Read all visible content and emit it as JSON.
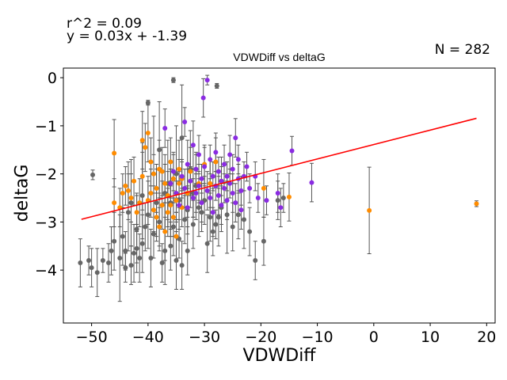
{
  "stats": {
    "r2_text": "r^2 = 0.09",
    "equation_text": "y = 0.03x + -1.39",
    "n_text": "N = 282"
  },
  "chart_data": {
    "type": "scatter",
    "title": "VDWDiff vs deltaG",
    "xlabel": "VDWDiff",
    "ylabel": "deltaG",
    "xlim": [
      -55,
      21.5
    ],
    "ylim": [
      -5.1,
      0.2
    ],
    "xticks": [
      -50,
      -40,
      -30,
      -20,
      -10,
      0,
      10,
      20
    ],
    "xtick_labels": [
      "−50",
      "−40",
      "−30",
      "−20",
      "−10",
      "0",
      "10",
      "20"
    ],
    "yticks": [
      0,
      -1,
      -2,
      -3,
      -4
    ],
    "ytick_labels": [
      "0",
      "−1",
      "−2",
      "−3",
      "−4"
    ],
    "grid": false,
    "legend": false,
    "colors": {
      "gray": "#666666",
      "orange": "#ff8c00",
      "purple": "#8a2be2",
      "fit": "#ff0000",
      "errorbar": "#555555"
    },
    "fit_line": {
      "slope": 0.03,
      "intercept": -1.39,
      "x": [
        -51.8,
        18.2
      ]
    },
    "series": [
      {
        "color": "gray",
        "points": [
          [
            -52,
            -3.85,
            0.5
          ],
          [
            -50.5,
            -3.8,
            0.3
          ],
          [
            -50,
            -3.95,
            0.4
          ],
          [
            -49.8,
            -2.02,
            0.1
          ],
          [
            -49,
            -4.05,
            0.5
          ],
          [
            -48,
            -3.8,
            0.25
          ],
          [
            -47,
            -3.85,
            0.4
          ],
          [
            -46.5,
            -3.6,
            0.5
          ],
          [
            -46,
            -3.4,
            0.6
          ],
          [
            -45,
            -3.75,
            0.9
          ],
          [
            -44.5,
            -3.3,
            0.6
          ],
          [
            -44,
            -3.6,
            0.4
          ],
          [
            -44,
            -3.95,
            0.3
          ],
          [
            -43.5,
            -2.8,
            0.8
          ],
          [
            -43,
            -2.6,
            0.9
          ],
          [
            -43,
            -3.9,
            0.4
          ],
          [
            -42.5,
            -3.65,
            0.6
          ],
          [
            -42,
            -3.55,
            0.5
          ],
          [
            -42,
            -3.15,
            0.7
          ],
          [
            -41.5,
            -3.75,
            0.5
          ],
          [
            -41,
            -3.45,
            0.6
          ],
          [
            -41,
            -2.45,
            0.9
          ],
          [
            -40.5,
            -3.1,
            0.5
          ],
          [
            -40,
            -2.85,
            0.7
          ],
          [
            -40,
            -0.52,
            0.05
          ],
          [
            -39.5,
            -3.75,
            0.6
          ],
          [
            -39,
            -2.0,
            1.2
          ],
          [
            -39,
            -3.25,
            0.5
          ],
          [
            -38.5,
            -2.6,
            0.7
          ],
          [
            -38,
            -1.5,
            1.0
          ],
          [
            -38,
            -3.0,
            0.6
          ],
          [
            -37.5,
            -3.85,
            0.4
          ],
          [
            -37,
            -3.6,
            0.7
          ],
          [
            -37,
            -2.4,
            0.8
          ],
          [
            -36.5,
            -2.2,
            0.9
          ],
          [
            -36,
            -2.6,
            0.7
          ],
          [
            -36,
            -3.5,
            0.5
          ],
          [
            -35.5,
            -0.05,
            0.05
          ],
          [
            -35.5,
            -3.1,
            0.6
          ],
          [
            -35,
            -2.0,
            1.0
          ],
          [
            -35,
            -3.8,
            0.6
          ],
          [
            -34.5,
            -2.55,
            0.6
          ],
          [
            -34.5,
            -3.35,
            0.4
          ],
          [
            -34,
            -1.25,
            1.1
          ],
          [
            -34,
            -3.9,
            0.5
          ],
          [
            -33.5,
            -2.95,
            0.5
          ],
          [
            -33,
            -2.75,
            0.5
          ],
          [
            -33,
            -3.6,
            0.5
          ],
          [
            -32.5,
            -1.9,
            0.8
          ],
          [
            -32,
            -2.4,
            0.5
          ],
          [
            -32,
            -3.05,
            0.5
          ],
          [
            -31.5,
            -2.25,
            0.7
          ],
          [
            -31,
            -2.7,
            0.6
          ],
          [
            -30.5,
            -2.8,
            0.4
          ],
          [
            -30,
            -2.55,
            0.5
          ],
          [
            -29.5,
            -3.45,
            0.6
          ],
          [
            -29,
            -2.9,
            0.5
          ],
          [
            -28.5,
            -3.2,
            0.5
          ],
          [
            -28,
            -3.05,
            0.3
          ],
          [
            -27.8,
            -0.17,
            0.05
          ],
          [
            -27.5,
            -2.9,
            0.6
          ],
          [
            -27,
            -2.7,
            0.5
          ],
          [
            -26,
            -2.85,
            0.8
          ],
          [
            -25,
            -3.1,
            0.5
          ],
          [
            -24,
            -2.85,
            0.5
          ],
          [
            -23,
            -2.95,
            0.6
          ],
          [
            -22,
            -3.2,
            0.5
          ],
          [
            -21,
            -3.8,
            0.4
          ],
          [
            -19.5,
            -3.4,
            0.5
          ],
          [
            -17,
            -2.55,
            0.4
          ],
          [
            -16,
            -2.5,
            0.3
          ]
        ]
      },
      {
        "color": "orange",
        "points": [
          [
            -46,
            -1.57,
            0.7
          ],
          [
            -46,
            -2.6,
            0.5
          ],
          [
            -45,
            -2.7,
            0.4
          ],
          [
            -44.5,
            -2.4,
            0.4
          ],
          [
            -44,
            -2.25,
            0.4
          ],
          [
            -43.5,
            -2.35,
            0.6
          ],
          [
            -43,
            -2.5,
            0.5
          ],
          [
            -42.5,
            -2.15,
            0.5
          ],
          [
            -42,
            -2.8,
            0.4
          ],
          [
            -41.5,
            -2.6,
            0.5
          ],
          [
            -41,
            -2.05,
            0.7
          ],
          [
            -41,
            -1.3,
            0.6
          ],
          [
            -40.5,
            -1.45,
            0.5
          ],
          [
            -40,
            -2.55,
            0.5
          ],
          [
            -40,
            -1.15,
            0.6
          ],
          [
            -39.5,
            -1.75,
            0.5
          ],
          [
            -39.5,
            -2.4,
            0.5
          ],
          [
            -39,
            -2.75,
            0.5
          ],
          [
            -39,
            -2.0,
            0.4
          ],
          [
            -38.5,
            -2.9,
            0.5
          ],
          [
            -38.5,
            -2.3,
            0.5
          ],
          [
            -38,
            -3.1,
            0.4
          ],
          [
            -38,
            -1.9,
            0.6
          ],
          [
            -37.5,
            -2.65,
            0.5
          ],
          [
            -37.5,
            -1.95,
            0.5
          ],
          [
            -37,
            -2.2,
            0.4
          ],
          [
            -37,
            -3.2,
            0.6
          ],
          [
            -36.5,
            -2.8,
            0.5
          ],
          [
            -36.5,
            -2.45,
            0.5
          ],
          [
            -36,
            -1.75,
            0.5
          ],
          [
            -36,
            -2.65,
            0.5
          ],
          [
            -35.5,
            -2.9,
            0.4
          ],
          [
            -35.5,
            -2.1,
            0.5
          ],
          [
            -35,
            -2.55,
            0.4
          ],
          [
            -35,
            -3.3,
            0.5
          ],
          [
            -34.5,
            -2.2,
            0.5
          ],
          [
            -34.5,
            -1.9,
            0.6
          ],
          [
            -34,
            -2.7,
            0.4
          ],
          [
            -34,
            -2.1,
            0.4
          ],
          [
            -33,
            -2.4,
            0.5
          ],
          [
            -32.5,
            -1.95,
            0.5
          ],
          [
            -31,
            -2.2,
            0.4
          ],
          [
            -30,
            -1.8,
            0.4
          ],
          [
            -29,
            -2.2,
            0.5
          ],
          [
            -28,
            -1.75,
            0.5
          ],
          [
            -27,
            -2.15,
            0.5
          ],
          [
            -19.5,
            -2.3,
            0.6
          ],
          [
            -15,
            -2.48,
            0.5
          ],
          [
            -0.8,
            -2.76,
            0.9
          ],
          [
            18.2,
            -2.62,
            0.06
          ]
        ]
      },
      {
        "color": "purple",
        "points": [
          [
            -37,
            -1.05,
            0.4
          ],
          [
            -36,
            -2.2,
            0.3
          ],
          [
            -35.5,
            -1.95,
            0.4
          ],
          [
            -35,
            -2.4,
            0.4
          ],
          [
            -34.5,
            -2.65,
            0.5
          ],
          [
            -34,
            -2.05,
            0.3
          ],
          [
            -33.5,
            -0.92,
            0.3
          ],
          [
            -33.5,
            -2.3,
            0.4
          ],
          [
            -33,
            -1.8,
            0.5
          ],
          [
            -33,
            -2.7,
            0.4
          ],
          [
            -32.5,
            -2.15,
            0.3
          ],
          [
            -32,
            -2.5,
            0.4
          ],
          [
            -32,
            -1.4,
            0.5
          ],
          [
            -31.5,
            -2.4,
            0.4
          ],
          [
            -31.5,
            -1.9,
            0.3
          ],
          [
            -31,
            -2.25,
            0.3
          ],
          [
            -31,
            -1.6,
            0.4
          ],
          [
            -30.5,
            -2.6,
            0.4
          ],
          [
            -30.5,
            -2.1,
            0.3
          ],
          [
            -30.2,
            -0.42,
            0.4
          ],
          [
            -30,
            -1.85,
            0.4
          ],
          [
            -29.5,
            -0.05,
            0.1
          ],
          [
            -29.5,
            -2.35,
            0.4
          ],
          [
            -29,
            -1.7,
            0.3
          ],
          [
            -29,
            -2.5,
            0.4
          ],
          [
            -28.5,
            -2.05,
            0.3
          ],
          [
            -28.5,
            -2.8,
            0.5
          ],
          [
            -28,
            -2.25,
            0.3
          ],
          [
            -28,
            -1.55,
            0.4
          ],
          [
            -27.5,
            -2.45,
            0.4
          ],
          [
            -27.5,
            -1.95,
            0.3
          ],
          [
            -27,
            -2.15,
            0.3
          ],
          [
            -27,
            -2.65,
            0.4
          ],
          [
            -26.5,
            -1.8,
            0.4
          ],
          [
            -26.5,
            -2.3,
            0.3
          ],
          [
            -26,
            -2.05,
            0.3
          ],
          [
            -26,
            -2.55,
            0.4
          ],
          [
            -25.5,
            -1.6,
            0.4
          ],
          [
            -25.5,
            -2.2,
            0.3
          ],
          [
            -25,
            -2.4,
            0.4
          ],
          [
            -25,
            -1.9,
            0.3
          ],
          [
            -24.5,
            -1.25,
            0.4
          ],
          [
            -24.5,
            -2.6,
            0.4
          ],
          [
            -24,
            -2.1,
            0.3
          ],
          [
            -24,
            -1.7,
            0.3
          ],
          [
            -23.5,
            -2.35,
            0.3
          ],
          [
            -23.5,
            -2.75,
            0.4
          ],
          [
            -23,
            -2.05,
            0.3
          ],
          [
            -22.5,
            -1.85,
            0.3
          ],
          [
            -22,
            -2.3,
            0.3
          ],
          [
            -21,
            -2.05,
            0.3
          ],
          [
            -20.5,
            -2.5,
            0.3
          ],
          [
            -19,
            -2.55,
            0.3
          ],
          [
            -17,
            -2.4,
            0.4
          ],
          [
            -16.5,
            -2.7,
            0.4
          ],
          [
            -14.5,
            -1.52,
            0.3
          ],
          [
            -11,
            -2.18,
            0.4
          ]
        ]
      }
    ]
  }
}
